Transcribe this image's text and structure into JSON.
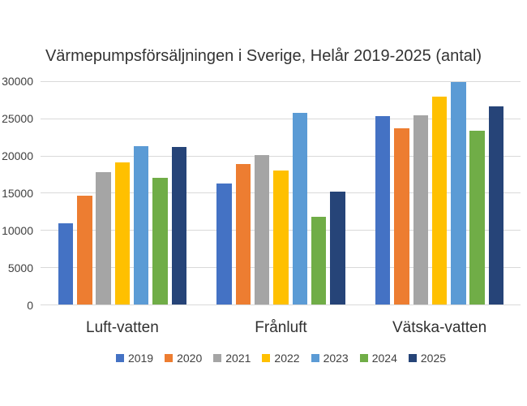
{
  "page": {
    "background_color": "#ffffff"
  },
  "chart_data": {
    "type": "bar",
    "title": "Värmepumpsförsäljningen i Sverige, Helår 2019-2025 (antal)",
    "xlabel": "",
    "ylabel": "",
    "categories": [
      "Luft-vatten",
      "Frånluft",
      "Vätska-vatten"
    ],
    "series": [
      {
        "name": "2019",
        "color": "#4472C4",
        "values": [
          11000,
          16300,
          25300
        ]
      },
      {
        "name": "2020",
        "color": "#ED7D31",
        "values": [
          14700,
          18900,
          23700
        ]
      },
      {
        "name": "2021",
        "color": "#A5A5A5",
        "values": [
          17800,
          20100,
          25400
        ]
      },
      {
        "name": "2022",
        "color": "#FFC000",
        "values": [
          19100,
          18000,
          28000
        ]
      },
      {
        "name": "2023",
        "color": "#5B9BD5",
        "values": [
          21300,
          25800,
          29900
        ]
      },
      {
        "name": "2024",
        "color": "#70AD47",
        "values": [
          17100,
          11800,
          23400
        ]
      },
      {
        "name": "2025",
        "color": "#264478",
        "values": [
          21200,
          15200,
          26700
        ]
      }
    ],
    "ylim": [
      0,
      30000
    ],
    "ytick_step": 5000,
    "yticks": [
      "0",
      "5000",
      "10000",
      "15000",
      "20000",
      "25000",
      "30000"
    ],
    "grid": true,
    "gridline_color": "#D9D9D9",
    "axis_text_color": "#404040",
    "title_color": "#333333",
    "legend_position": "bottom"
  }
}
